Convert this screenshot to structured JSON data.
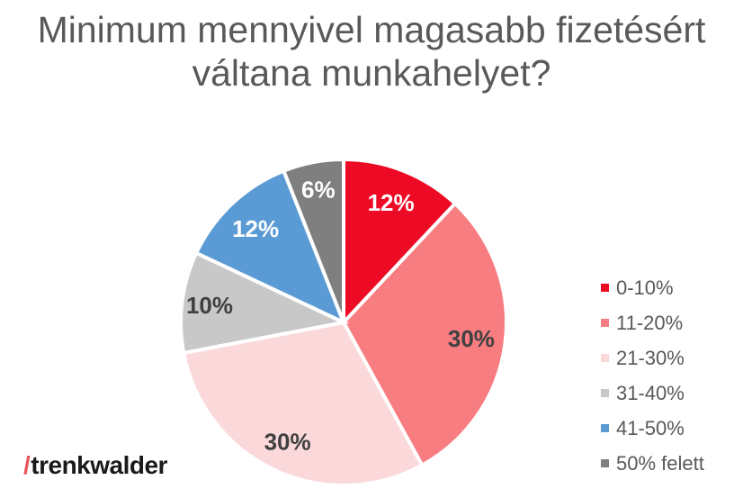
{
  "title": {
    "line1": "Minimum mennyivel magasabb fizetésért",
    "line2": "váltana munkahelyet?"
  },
  "chart_data": {
    "type": "pie",
    "title": "Minimum mennyivel magasabb fizetésért váltana munkahelyet?",
    "categories": [
      "0-10%",
      "11-20%",
      "21-30%",
      "31-40%",
      "41-50%",
      "50% felett"
    ],
    "values": [
      12,
      30,
      30,
      10,
      12,
      6
    ],
    "slice_labels": [
      "12%",
      "30%",
      "30%",
      "10%",
      "12%",
      "6%"
    ],
    "colors": [
      "#ED0A24",
      "#F87D80",
      "#FBD9DB",
      "#C8C8C8",
      "#5B9BD5",
      "#7F7F7F"
    ],
    "label_colors": [
      "#FFFFFF",
      "#404040",
      "#404040",
      "#404040",
      "#FFFFFF",
      "#FFFFFF"
    ],
    "label_radius_fractions": [
      0.79,
      0.79,
      0.81,
      0.83,
      0.79,
      0.83
    ],
    "start_angle_deg": 0,
    "direction": "clockwise",
    "separator_color": "#FFFFFF",
    "separator_width": 4,
    "legend_position": "right",
    "grid": false
  },
  "legend_note": "legend items mirror chart_data.categories and chart_data.colors",
  "logo": {
    "slash": "/",
    "text": "trenkwalder",
    "slash_color": "#E8545B",
    "text_color": "#1a1a1a"
  },
  "colors": {
    "title_text": "#595959",
    "legend_text": "#595959",
    "background": "#FFFFFF"
  }
}
